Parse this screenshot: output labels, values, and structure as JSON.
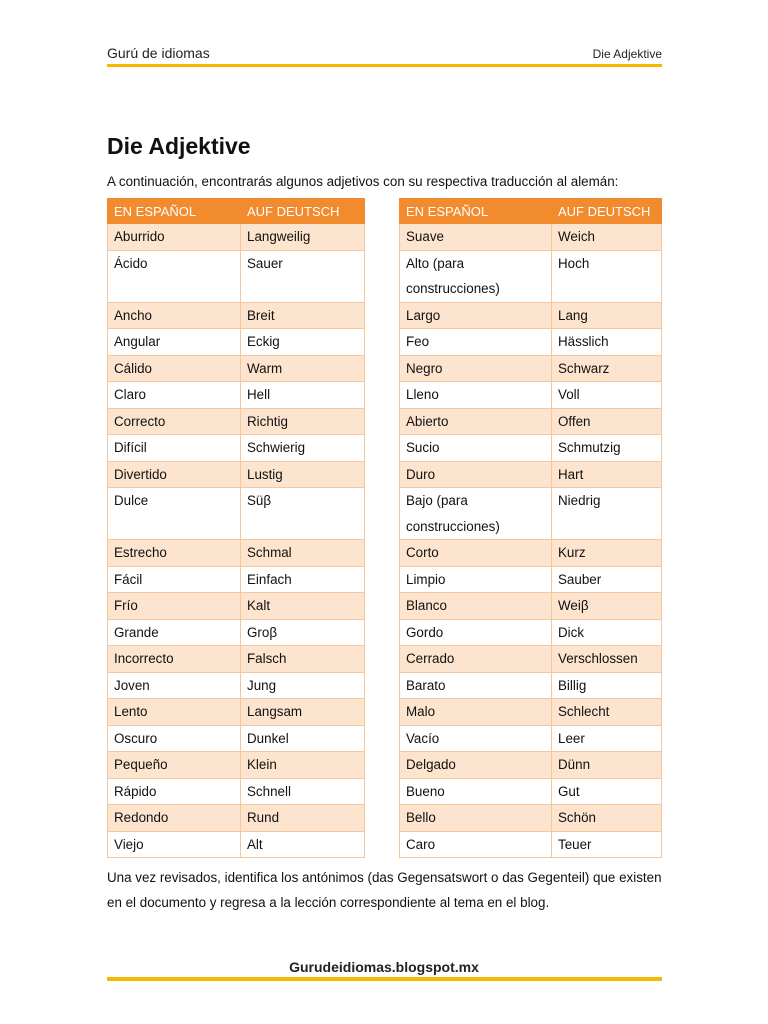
{
  "header": {
    "left": "Gurú de idiomas",
    "right": "Die Adjektive"
  },
  "title": "Die Adjektive",
  "intro": "A continuación, encontrarás algunos adjetivos con su respectiva traducción al alemán:",
  "colors": {
    "accent": "#f28a2e",
    "row_alt": "#fde4cf",
    "rule": "#f5b800"
  },
  "table_left": {
    "headers": [
      "EN ESPAÑOL",
      "AUF DEUTSCH"
    ],
    "rows": [
      [
        "Aburrido",
        "Langweilig"
      ],
      [
        "Ácido",
        "Sauer"
      ],
      [
        "Ancho",
        "Breit"
      ],
      [
        "Angular",
        "Eckig"
      ],
      [
        "Cálido",
        "Warm"
      ],
      [
        "Claro",
        "Hell"
      ],
      [
        "Correcto",
        "Richtig"
      ],
      [
        "Difícil",
        "Schwierig"
      ],
      [
        "Divertido",
        "Lustig"
      ],
      [
        "Dulce",
        "Süβ"
      ],
      [
        "Estrecho",
        "Schmal"
      ],
      [
        "Fácil",
        "Einfach"
      ],
      [
        "Frío",
        "Kalt"
      ],
      [
        "Grande",
        "Groβ"
      ],
      [
        "Incorrecto",
        "Falsch"
      ],
      [
        "Joven",
        "Jung"
      ],
      [
        "Lento",
        "Langsam"
      ],
      [
        "Oscuro",
        "Dunkel"
      ],
      [
        "Pequeño",
        "Klein"
      ],
      [
        "Rápido",
        "Schnell"
      ],
      [
        "Redondo",
        "Rund"
      ],
      [
        "Viejo",
        "Alt"
      ]
    ]
  },
  "table_right": {
    "headers": [
      "EN ESPAÑOL",
      "AUF DEUTSCH"
    ],
    "rows": [
      [
        "Suave",
        "Weich"
      ],
      [
        "Alto (para construcciones)",
        "Hoch"
      ],
      [
        "Largo",
        "Lang"
      ],
      [
        "Feo",
        "Hässlich"
      ],
      [
        "Negro",
        "Schwarz"
      ],
      [
        "Lleno",
        "Voll"
      ],
      [
        "Abierto",
        "Offen"
      ],
      [
        "Sucio",
        "Schmutzig"
      ],
      [
        "Duro",
        "Hart"
      ],
      [
        "Bajo (para construcciones)",
        "Niedrig"
      ],
      [
        "Corto",
        "Kurz"
      ],
      [
        "Limpio",
        "Sauber"
      ],
      [
        "Blanco",
        "Weiβ"
      ],
      [
        "Gordo",
        "Dick"
      ],
      [
        "Cerrado",
        "Verschlossen"
      ],
      [
        "Barato",
        "Billig"
      ],
      [
        "Malo",
        "Schlecht"
      ],
      [
        "Vacío",
        "Leer"
      ],
      [
        "Delgado",
        "Dünn"
      ],
      [
        "Bueno",
        "Gut"
      ],
      [
        "Bello",
        "Schön"
      ],
      [
        "Caro",
        "Teuer"
      ]
    ]
  },
  "outro": "Una vez revisados, identifica los antónimos (das Gegensatswort o das Gegenteil) que existen en el documento y regresa a la lección correspondiente al tema en el blog.",
  "footer": {
    "link": "Gurudeidiomas.blogspot.mx"
  }
}
